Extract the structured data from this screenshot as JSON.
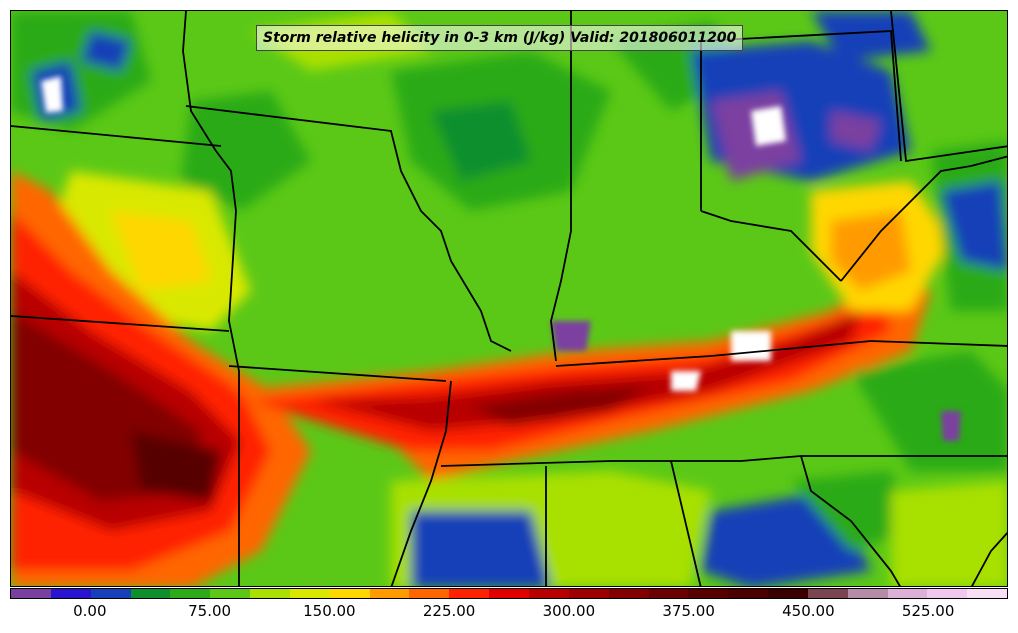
{
  "title": "Storm relative helicity in 0-3 km (J/kg) Valid: 201806011200",
  "colorbar": {
    "levels_start": -50,
    "level_step": 25,
    "colors": [
      "#7b3fa0",
      "#2a14d0",
      "#1640b8",
      "#0d8f2e",
      "#2caa18",
      "#5bc817",
      "#a8e003",
      "#d9e800",
      "#ffd700",
      "#ff9b00",
      "#ff6600",
      "#ff2200",
      "#e00000",
      "#b80000",
      "#9c0000",
      "#820000",
      "#6a0000",
      "#560000",
      "#4a0000",
      "#3a0000",
      "#7a4452",
      "#b58ca8",
      "#dcb0d8",
      "#f0c8ef",
      "#f8dff8"
    ],
    "tick_labels": [
      "0.00",
      "75.00",
      "150.00",
      "225.00",
      "300.00",
      "375.00",
      "450.00",
      "525.00"
    ],
    "tick_values": [
      0,
      75,
      150,
      225,
      300,
      375,
      450,
      525
    ],
    "max_value": 575
  },
  "map": {
    "background": "#5bc817",
    "borders_color": "#000000"
  }
}
